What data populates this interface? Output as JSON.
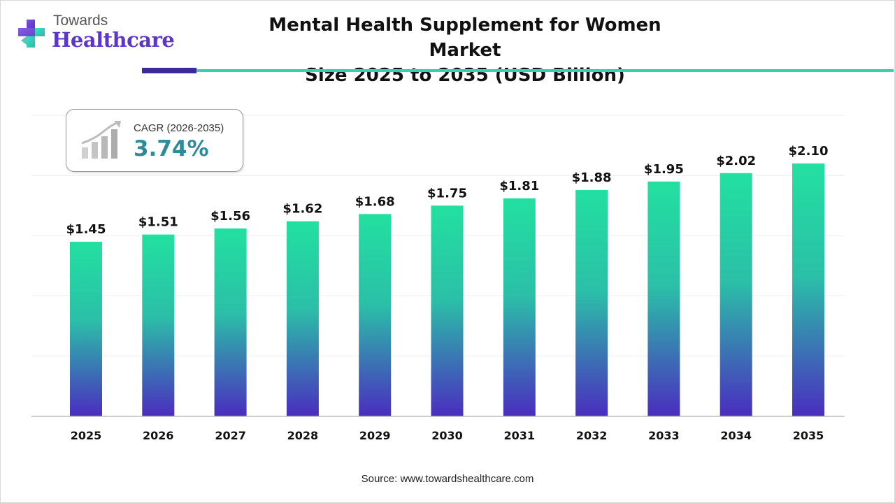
{
  "brand": {
    "name_top": "Towards",
    "name_bottom": "Healthcare",
    "colors": {
      "purple": "#5b36c8",
      "teal": "#37d1b0",
      "dark_bar": "#3b2b9c"
    }
  },
  "title": {
    "line1": "Mental Health Supplement for Women Market",
    "line2": "Size 2025 to 2035 (USD Billion)"
  },
  "cagr": {
    "label": "CAGR (2026-2035)",
    "value": "3.74%",
    "icon": "growth-chart-icon"
  },
  "chart_data": {
    "type": "bar",
    "title": "Mental Health Supplement for Women Market Size 2025 to 2035 (USD Billion)",
    "categories": [
      "2025",
      "2026",
      "2027",
      "2028",
      "2029",
      "2030",
      "2031",
      "2032",
      "2033",
      "2034",
      "2035"
    ],
    "values": [
      1.45,
      1.51,
      1.56,
      1.62,
      1.68,
      1.75,
      1.81,
      1.88,
      1.95,
      2.02,
      2.1
    ],
    "value_labels": [
      "$1.45",
      "$1.51",
      "$1.56",
      "$1.62",
      "$1.68",
      "$1.75",
      "$1.81",
      "$1.88",
      "$1.95",
      "$2.02",
      "$2.10"
    ],
    "xlabel": "",
    "ylabel": "",
    "ylim": [
      0,
      2.5
    ],
    "grid": true,
    "gradient": {
      "top": "#22e0a0",
      "bottom": "#4a2dbf"
    }
  },
  "footer": {
    "source": "Source: www.towardshealthcare.com"
  }
}
